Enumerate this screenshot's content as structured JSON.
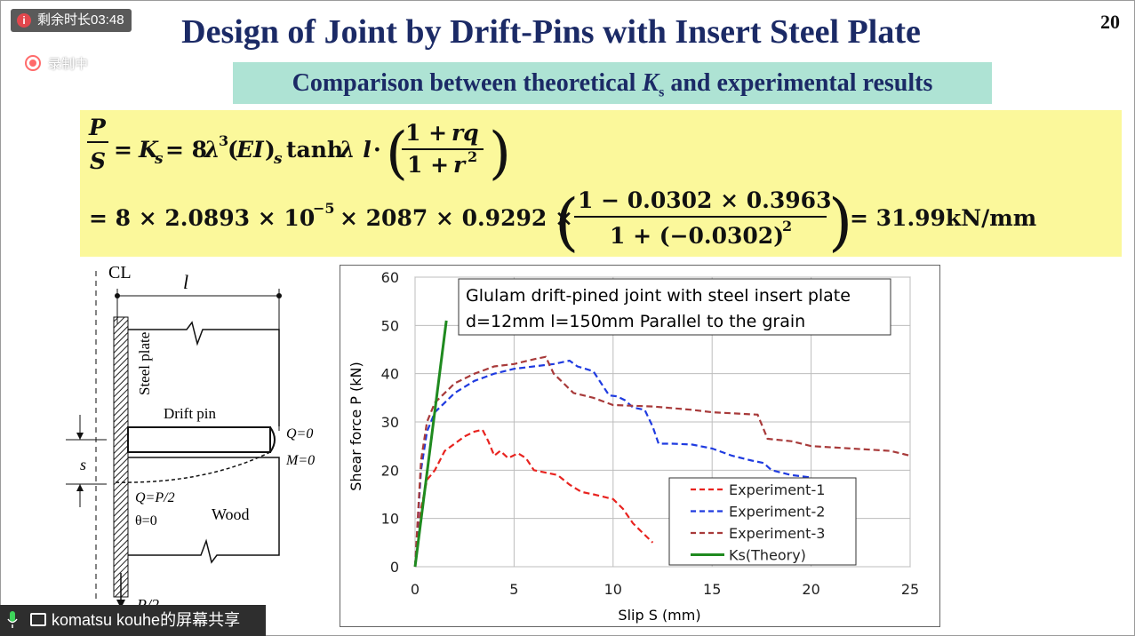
{
  "slide": {
    "title": "Design of Joint by Drift-Pins with Insert Steel Plate",
    "page_number": "20",
    "subtitle_pre": "Comparison between theoretical ",
    "subtitle_var": "K",
    "subtitle_sub": "s",
    "subtitle_post": " and experimental results"
  },
  "formula": {
    "line1": "P/S = K_s = 8λ³(EI)_s tanh λ l · ((1 + rq)/(1 + r²))",
    "line2": "= 8 × 2.0893 × 10⁻⁵ × 2087 × 0.9292 × ((1 − 0.0302 × 0.3963)/(1 + (−0.0302)²)) = 31.99kN/mm",
    "line2_prefix": "= 8 × 2.0893 × 10",
    "line2_exp": "−5",
    "line2_mid": "× 2087 × 0.9292 ×",
    "num2": "1 − 0.0302 × 0.3963",
    "den2_pre": "1 + (−0.0302)",
    "result": "= 31.99kN/mm"
  },
  "diagram": {
    "cl": "CL",
    "length_label": "l",
    "steel_plate": "Steel plate",
    "drift_pin": "Drift pin",
    "q0": "Q=0",
    "m0": "M=0",
    "s": "s",
    "q_half": "Q=P/2",
    "theta": "θ=0",
    "wood": "Wood",
    "p_half": "P/2"
  },
  "chart_data": {
    "type": "line",
    "title_line1": "Glulam drift-pined joint with steel insert plate",
    "title_line2": "d=12mm  l=150mm Parallel to the grain",
    "xlabel": "Slip S  (mm)",
    "ylabel": "Shear force P   (kN)",
    "xlim": [
      0,
      25
    ],
    "ylim": [
      0,
      60
    ],
    "xticks": [
      0,
      5,
      10,
      15,
      20,
      25
    ],
    "yticks": [
      0,
      10,
      20,
      30,
      40,
      50,
      60
    ],
    "legend_position": "bottom-right",
    "series": [
      {
        "name": "Experiment-1",
        "color": "#e8231f",
        "dash": true,
        "points": [
          [
            0,
            0
          ],
          [
            0.3,
            12
          ],
          [
            0.6,
            18
          ],
          [
            1,
            20
          ],
          [
            1.5,
            24
          ],
          [
            2,
            25.5
          ],
          [
            2.5,
            27
          ],
          [
            3,
            28
          ],
          [
            3.4,
            28.4
          ],
          [
            3.7,
            26
          ],
          [
            4,
            23
          ],
          [
            4.3,
            24
          ],
          [
            4.7,
            22.5
          ],
          [
            5.2,
            23.5
          ],
          [
            5.6,
            22.5
          ],
          [
            6,
            20
          ],
          [
            6.6,
            19.5
          ],
          [
            7.2,
            19
          ],
          [
            7.8,
            17
          ],
          [
            8.4,
            15.5
          ],
          [
            9,
            15
          ],
          [
            9.5,
            14.5
          ],
          [
            10,
            14
          ],
          [
            10.5,
            12
          ],
          [
            11,
            9
          ],
          [
            11.5,
            7
          ],
          [
            12,
            5
          ]
        ]
      },
      {
        "name": "Experiment-2",
        "color": "#1f3be0",
        "dash": true,
        "points": [
          [
            0,
            0
          ],
          [
            0.3,
            20
          ],
          [
            0.6,
            28
          ],
          [
            1,
            32
          ],
          [
            2,
            36
          ],
          [
            3,
            38.5
          ],
          [
            4,
            40
          ],
          [
            5,
            41
          ],
          [
            6,
            41.5
          ],
          [
            7,
            42
          ],
          [
            7.8,
            42.7
          ],
          [
            8.2,
            41.5
          ],
          [
            8.6,
            41
          ],
          [
            9,
            40.5
          ],
          [
            9.4,
            38
          ],
          [
            9.8,
            35.5
          ],
          [
            10.2,
            35.3
          ],
          [
            10.6,
            34.5
          ],
          [
            11,
            33
          ],
          [
            11.6,
            32.5
          ],
          [
            12,
            29
          ],
          [
            12.3,
            25.5
          ],
          [
            13,
            25.5
          ],
          [
            14,
            25.3
          ],
          [
            15,
            24.5
          ],
          [
            16,
            23
          ],
          [
            17,
            22
          ],
          [
            17.6,
            21.5
          ],
          [
            18,
            20
          ],
          [
            19,
            19
          ],
          [
            20,
            18.5
          ]
        ]
      },
      {
        "name": "Experiment-3",
        "color": "#a83a3a",
        "dash": true,
        "points": [
          [
            0,
            0
          ],
          [
            0.3,
            22
          ],
          [
            0.6,
            30
          ],
          [
            1,
            34
          ],
          [
            2,
            38
          ],
          [
            3,
            40
          ],
          [
            4,
            41.5
          ],
          [
            5,
            42
          ],
          [
            6,
            43
          ],
          [
            6.6,
            43.5
          ],
          [
            7,
            40
          ],
          [
            7.5,
            38
          ],
          [
            8,
            36
          ],
          [
            9,
            35
          ],
          [
            10,
            33.5
          ],
          [
            12,
            33.2
          ],
          [
            14,
            32.5
          ],
          [
            15,
            32
          ],
          [
            17.3,
            31.5
          ],
          [
            17.8,
            26.5
          ],
          [
            19,
            26
          ],
          [
            20,
            25
          ],
          [
            22,
            24.5
          ],
          [
            24,
            24
          ],
          [
            25,
            23
          ]
        ]
      },
      {
        "name": "Ks(Theory)",
        "color": "#1f8a1f",
        "dash": false,
        "points": [
          [
            0,
            0
          ],
          [
            1.58,
            51
          ]
        ]
      }
    ]
  },
  "screen_share": {
    "timer": "剩余时长03:48",
    "recording": "录制中",
    "sharer": "komatsu kouhe的屏幕共享"
  }
}
